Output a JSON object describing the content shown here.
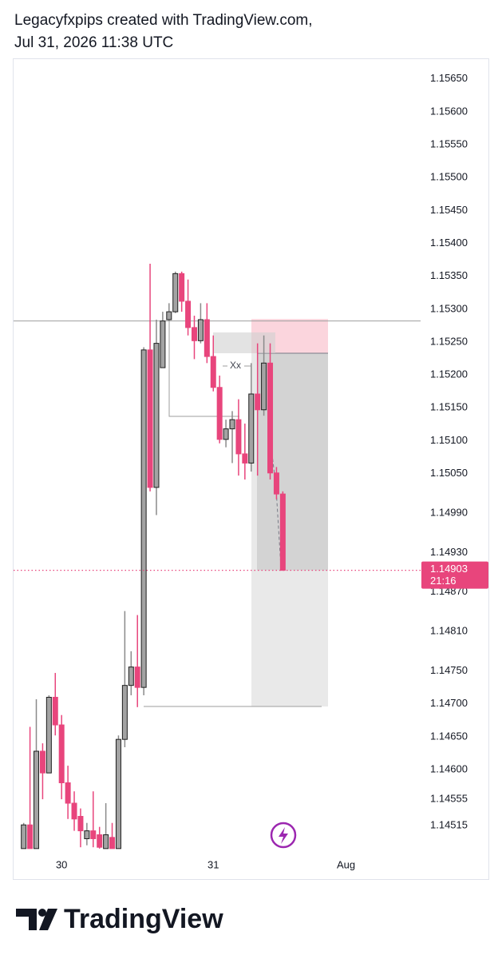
{
  "chart_data": {
    "type": "candlestick",
    "title": "Legacyfxpips created with TradingView.com,",
    "subtitle": "Jul 31, 2026 11:38 UTC",
    "brand": "TradingView",
    "x": [
      -6,
      -5,
      -4,
      -3,
      -2,
      -1,
      0,
      1,
      2,
      3,
      4,
      5,
      6,
      7,
      8,
      9,
      10,
      11,
      12,
      13,
      14,
      15,
      16,
      17,
      18,
      19,
      20,
      21,
      22,
      23,
      24,
      25,
      26,
      27,
      28,
      29,
      30,
      31,
      32,
      33,
      34,
      35
    ],
    "open": [
      1.1448,
      1.14516,
      1.1448,
      1.14628,
      1.14595,
      1.1471,
      1.14668,
      1.1458,
      1.14549,
      1.14529,
      1.14495,
      1.14507,
      1.14501,
      1.1448,
      1.14497,
      1.1448,
      1.14646,
      1.14728,
      1.14756,
      1.14725,
      1.15238,
      1.15029,
      1.15211,
      1.15284,
      1.15296,
      1.15354,
      1.15312,
      1.15272,
      1.15252,
      1.15284,
      1.15228,
      1.15181,
      1.15102,
      1.15118,
      1.15132,
      1.1508,
      1.15066,
      1.15171,
      1.15147,
      1.15218,
      1.15051,
      1.15019
    ],
    "high": [
      1.14519,
      1.14665,
      1.14707,
      1.1464,
      1.14713,
      1.14747,
      1.14683,
      1.14606,
      1.14567,
      1.14541,
      1.14519,
      1.14567,
      1.14513,
      1.14549,
      1.14519,
      1.14652,
      1.14841,
      1.1478,
      1.14835,
      1.15242,
      1.15369,
      1.15284,
      1.15296,
      1.15309,
      1.15357,
      1.15357,
      1.15345,
      1.1529,
      1.15309,
      1.15309,
      1.1526,
      1.15199,
      1.15132,
      1.15145,
      1.15163,
      1.15126,
      1.15218,
      1.15248,
      1.1526,
      1.15248,
      1.1506,
      1.15023
    ],
    "low": [
      1.1448,
      1.1448,
      1.1448,
      1.14555,
      1.14595,
      1.14652,
      1.14555,
      1.14525,
      1.14507,
      1.14482,
      1.14485,
      1.14482,
      1.1448,
      1.1448,
      1.1448,
      1.1448,
      1.14634,
      1.14713,
      1.14695,
      1.14713,
      1.15023,
      1.14987,
      1.15211,
      1.15282,
      1.15294,
      1.15296,
      1.1526,
      1.15224,
      1.15248,
      1.15218,
      1.15175,
      1.15096,
      1.1509,
      1.15066,
      1.15047,
      1.15041,
      1.15053,
      1.15047,
      1.15138,
      1.15041,
      1.15011,
      1.14903
    ],
    "close": [
      1.14516,
      1.1448,
      1.14628,
      1.14595,
      1.1471,
      1.14668,
      1.1458,
      1.14549,
      1.14525,
      1.14507,
      1.14507,
      1.14495,
      1.14482,
      1.14501,
      1.1448,
      1.14646,
      1.14728,
      1.14756,
      1.14725,
      1.15238,
      1.15029,
      1.15248,
      1.15282,
      1.15296,
      1.15354,
      1.15312,
      1.15272,
      1.15252,
      1.15284,
      1.15228,
      1.15181,
      1.15102,
      1.15118,
      1.15132,
      1.1508,
      1.15066,
      1.15171,
      1.15147,
      1.15218,
      1.15051,
      1.15019,
      1.14903
    ],
    "colors": {
      "up": "#a3a3a3",
      "down": "#e8457c",
      "border": "#1f1f1f"
    },
    "xlim": [
      -7.6,
      56.8
    ],
    "xticks": [
      {
        "value": 0,
        "label": "30"
      },
      {
        "value": 24,
        "label": "31"
      },
      {
        "value": 45,
        "label": "Aug"
      }
    ],
    "ylim": [
      1.14464,
      1.1568
    ],
    "yticks": [
      {
        "value": 1.1565,
        "label": "1.15650"
      },
      {
        "value": 1.156,
        "label": "1.15600"
      },
      {
        "value": 1.1555,
        "label": "1.15550"
      },
      {
        "value": 1.155,
        "label": "1.15500"
      },
      {
        "value": 1.1545,
        "label": "1.15450"
      },
      {
        "value": 1.154,
        "label": "1.15400"
      },
      {
        "value": 1.1535,
        "label": "1.15350"
      },
      {
        "value": 1.153,
        "label": "1.15300"
      },
      {
        "value": 1.1525,
        "label": "1.15250"
      },
      {
        "value": 1.152,
        "label": "1.15200"
      },
      {
        "value": 1.1515,
        "label": "1.15150"
      },
      {
        "value": 1.151,
        "label": "1.15100"
      },
      {
        "value": 1.1505,
        "label": "1.15050"
      },
      {
        "value": 1.1499,
        "label": "1.14990"
      },
      {
        "value": 1.1493,
        "label": "1.14930"
      },
      {
        "value": 1.1487,
        "label": "1.14870"
      },
      {
        "value": 1.1481,
        "label": "1.14810"
      },
      {
        "value": 1.1475,
        "label": "1.14750"
      },
      {
        "value": 1.147,
        "label": "1.14700"
      },
      {
        "value": 1.1465,
        "label": "1.14650"
      },
      {
        "value": 1.146,
        "label": "1.14600"
      },
      1.14555,
      1.14515
    ],
    "last_price": {
      "value": 1.14903,
      "countdown": "21:16",
      "color": "#e8457c"
    },
    "drawings": {
      "hline": 1.15282,
      "position": {
        "stop": 1.15285,
        "entry": 1.15233,
        "target": 1.14696
      },
      "label": "Xx"
    }
  }
}
